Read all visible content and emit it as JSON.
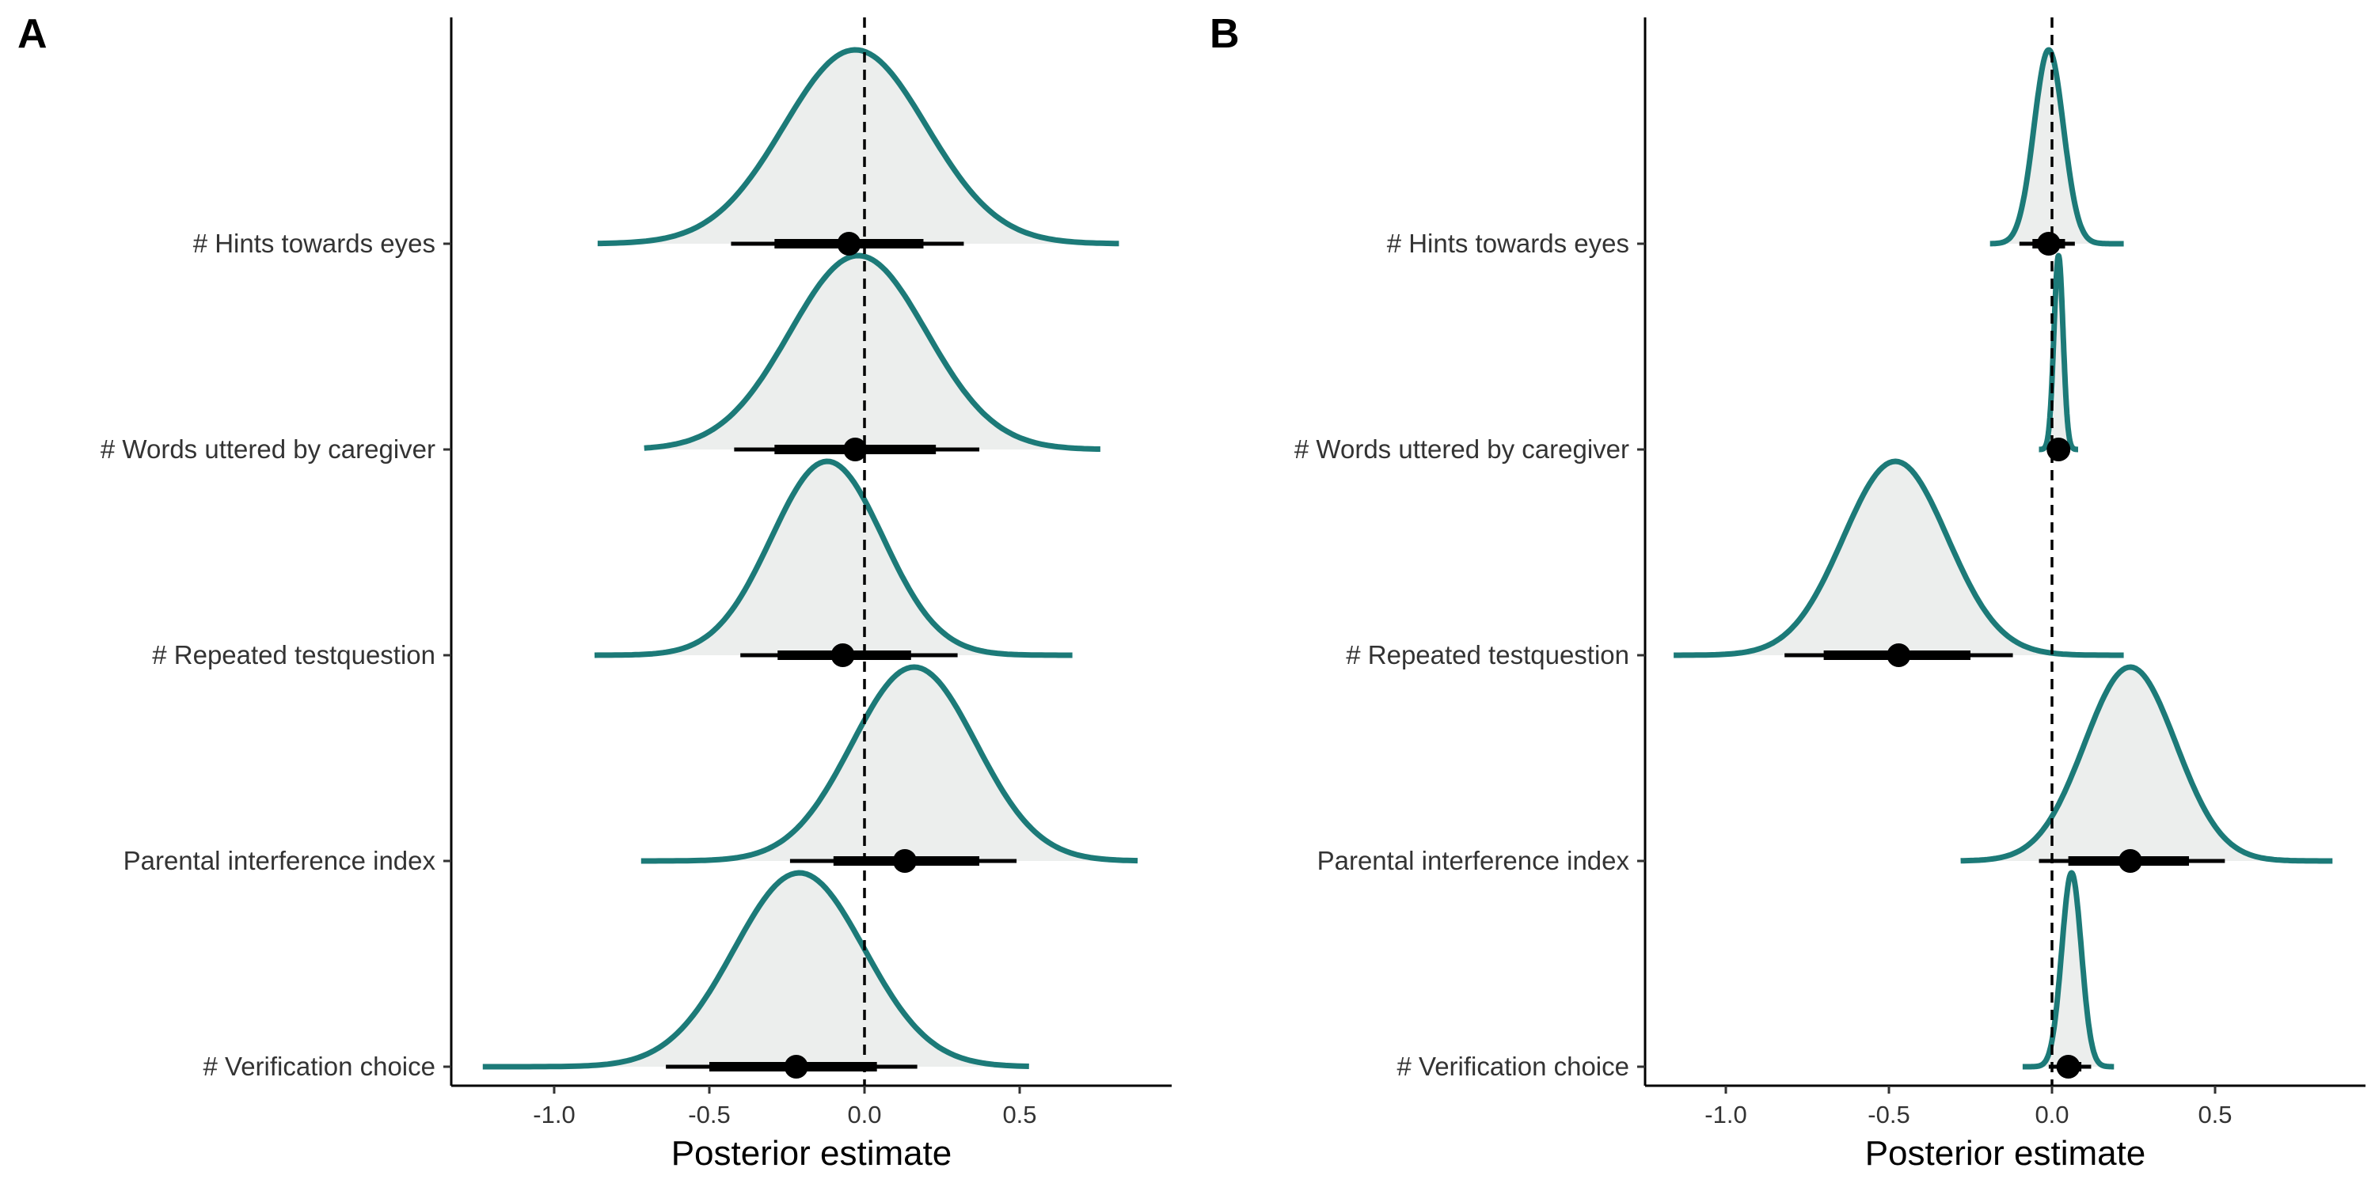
{
  "colors": {
    "density_stroke": "#1c7a78",
    "density_fill": "#eceeed",
    "point": "#000000",
    "axis": "#000000",
    "reference_line": "#000000"
  },
  "chart_data": [
    {
      "type": "halfeye",
      "panel": "A",
      "xlabel": "Posterior estimate",
      "xlim": [
        -1.32,
        1.0
      ],
      "xticks": [
        -1.0,
        -0.5,
        0.0,
        0.5
      ],
      "xtick_labels": [
        "-1.0",
        "-0.5",
        "0.0",
        "0.5"
      ],
      "reference_line_x": 0,
      "categories": [
        "# Hints towards eyes",
        "# Words uttered by caregiver",
        "# Repeated testquestion",
        "Parental interference index",
        "# Verification choice"
      ],
      "series": [
        {
          "label": "# Hints towards eyes",
          "median": -0.05,
          "interval_66": [
            -0.29,
            0.19
          ],
          "interval_95": [
            -0.43,
            0.32
          ],
          "density_range": [
            -0.86,
            0.82
          ],
          "mode": -0.03,
          "sd": 0.23
        },
        {
          "label": "# Words uttered by caregiver",
          "median": -0.03,
          "interval_66": [
            -0.29,
            0.23
          ],
          "interval_95": [
            -0.42,
            0.37
          ],
          "density_range": [
            -0.71,
            0.76
          ],
          "mode": -0.02,
          "sd": 0.22
        },
        {
          "label": "# Repeated testquestion",
          "median": -0.07,
          "interval_66": [
            -0.28,
            0.15
          ],
          "interval_95": [
            -0.4,
            0.3
          ],
          "density_range": [
            -0.87,
            0.67
          ],
          "mode": -0.12,
          "sd": 0.18
        },
        {
          "label": "Parental interference index",
          "median": 0.13,
          "interval_66": [
            -0.1,
            0.37
          ],
          "interval_95": [
            -0.24,
            0.49
          ],
          "density_range": [
            -0.72,
            0.88
          ],
          "mode": 0.16,
          "sd": 0.2
        },
        {
          "label": "# Verification choice",
          "median": -0.22,
          "interval_66": [
            -0.5,
            0.04
          ],
          "interval_95": [
            -0.64,
            0.17
          ],
          "density_range": [
            -1.23,
            0.53
          ],
          "mode": -0.21,
          "sd": 0.21
        }
      ]
    },
    {
      "type": "halfeye",
      "panel": "B",
      "xlabel": "Posterior estimate",
      "xlim": [
        -1.32,
        1.0
      ],
      "xticks": [
        -1.0,
        -0.5,
        0.0,
        0.5
      ],
      "xtick_labels": [
        "-1.0",
        "-0.5",
        "0.0",
        "0.5"
      ],
      "reference_line_x": 0,
      "categories": [
        "# Hints towards eyes",
        "# Words uttered by caregiver",
        "# Repeated testquestion",
        "Parental interference index",
        "# Verification choice"
      ],
      "series": [
        {
          "label": "# Hints towards eyes",
          "median": -0.01,
          "interval_66": [
            -0.06,
            0.04
          ],
          "interval_95": [
            -0.1,
            0.07
          ],
          "density_range": [
            -0.19,
            0.22
          ],
          "mode": -0.01,
          "sd": 0.045
        },
        {
          "label": "# Words uttered by caregiver",
          "median": 0.02,
          "interval_66": [
            0.0,
            0.03
          ],
          "interval_95": [
            -0.01,
            0.04
          ],
          "density_range": [
            -0.04,
            0.08
          ],
          "mode": 0.02,
          "sd": 0.014
        },
        {
          "label": "# Repeated testquestion",
          "median": -0.47,
          "interval_66": [
            -0.7,
            -0.25
          ],
          "interval_95": [
            -0.82,
            -0.12
          ],
          "density_range": [
            -1.16,
            0.22
          ],
          "mode": -0.48,
          "sd": 0.16
        },
        {
          "label": "Parental interference index",
          "median": 0.24,
          "interval_66": [
            0.05,
            0.42
          ],
          "interval_95": [
            -0.04,
            0.53
          ],
          "density_range": [
            -0.28,
            0.86
          ],
          "mode": 0.24,
          "sd": 0.14
        },
        {
          "label": "# Verification choice",
          "median": 0.05,
          "interval_66": [
            0.02,
            0.09
          ],
          "interval_95": [
            -0.01,
            0.12
          ],
          "density_range": [
            -0.09,
            0.19
          ],
          "mode": 0.06,
          "sd": 0.03
        }
      ]
    }
  ]
}
